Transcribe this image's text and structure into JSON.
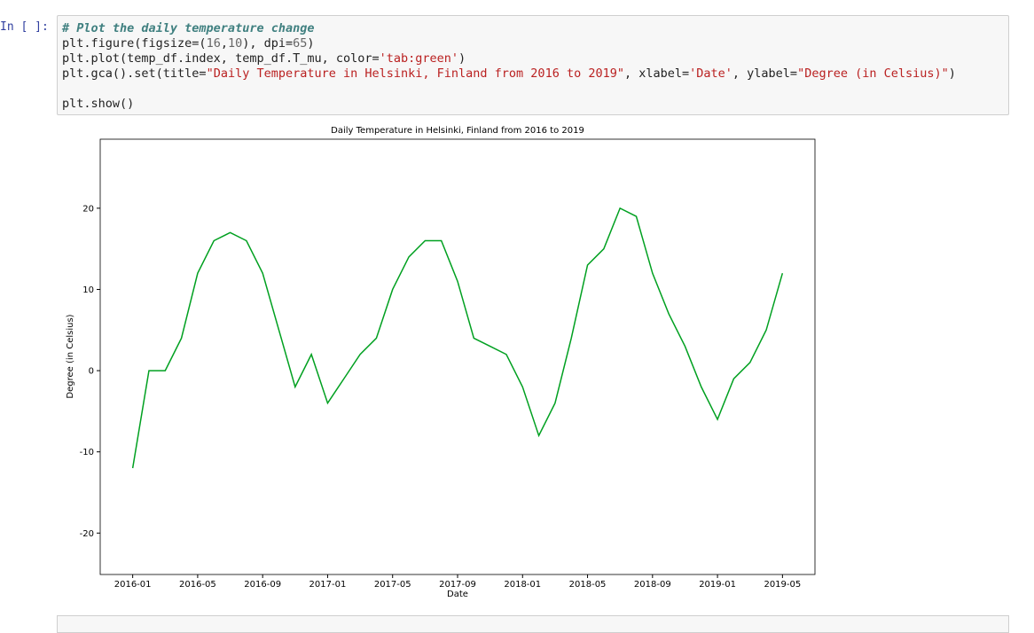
{
  "notebook": {
    "cells": [
      {
        "prompt": "In [ ]:",
        "code": [
          [
            {
              "text": "# Plot the daily temperature change",
              "style": "comment"
            }
          ],
          [
            {
              "text": "plt.figure(figsize=(",
              "style": "plain"
            },
            {
              "text": "16",
              "style": "number"
            },
            {
              "text": ",",
              "style": "plain"
            },
            {
              "text": "10",
              "style": "number"
            },
            {
              "text": "), dpi=",
              "style": "plain"
            },
            {
              "text": "65",
              "style": "number"
            },
            {
              "text": ")",
              "style": "plain"
            }
          ],
          [
            {
              "text": "plt.plot(temp_df.index, temp_df.T_mu, color=",
              "style": "plain"
            },
            {
              "text": "'tab:green'",
              "style": "string"
            },
            {
              "text": ")",
              "style": "plain"
            }
          ],
          [
            {
              "text": "plt.gca().set(title=",
              "style": "plain"
            },
            {
              "text": "\"Daily Temperature in Helsinki, Finland from 2016 to 2019\"",
              "style": "string"
            },
            {
              "text": ", xlabel=",
              "style": "plain"
            },
            {
              "text": "'Date'",
              "style": "string"
            },
            {
              "text": ", ylabel=",
              "style": "plain"
            },
            {
              "text": "\"Degree (in Celsius)\"",
              "style": "string"
            },
            {
              "text": ")",
              "style": "plain"
            }
          ],
          [],
          [
            {
              "text": "plt.show()",
              "style": "plain"
            }
          ]
        ]
      }
    ]
  },
  "chart_data": {
    "type": "line",
    "title": "Daily Temperature in Helsinki, Finland from 2016 to 2019",
    "x_label": "Date",
    "y_label": "Degree (in Celsius)",
    "color": "#00a020",
    "x": [
      "2016-01",
      "2016-02",
      "2016-03",
      "2016-04",
      "2016-05",
      "2016-06",
      "2016-07",
      "2016-08",
      "2016-09",
      "2016-10",
      "2016-11",
      "2016-12",
      "2017-01",
      "2017-02",
      "2017-03",
      "2017-04",
      "2017-05",
      "2017-06",
      "2017-07",
      "2017-08",
      "2017-09",
      "2017-10",
      "2017-11",
      "2017-12",
      "2018-01",
      "2018-02",
      "2018-03",
      "2018-04",
      "2018-05",
      "2018-06",
      "2018-07",
      "2018-08",
      "2018-09",
      "2018-10",
      "2018-11",
      "2018-12",
      "2019-01",
      "2019-02",
      "2019-03",
      "2019-04",
      "2019-05"
    ],
    "values": [
      -12,
      0,
      0,
      4,
      12,
      16,
      17,
      16,
      12,
      5,
      -2,
      2,
      -4,
      -1,
      2,
      4,
      10,
      14,
      16,
      16,
      11,
      4,
      3,
      2,
      -2,
      -8,
      -4,
      4,
      13,
      15,
      20,
      19,
      12,
      7,
      3,
      -2,
      -6,
      -1,
      1,
      5,
      12
    ],
    "xlim": [
      "2015-11",
      "2019-07"
    ],
    "xticks": [
      "2016-01",
      "2016-05",
      "2016-09",
      "2017-01",
      "2017-05",
      "2017-09",
      "2018-01",
      "2018-05",
      "2018-09",
      "2019-01",
      "2019-05"
    ],
    "ylim": [
      -25.1,
      28.5
    ],
    "yticks": [
      -20,
      -10,
      0,
      10,
      20
    ],
    "grid": false
  }
}
